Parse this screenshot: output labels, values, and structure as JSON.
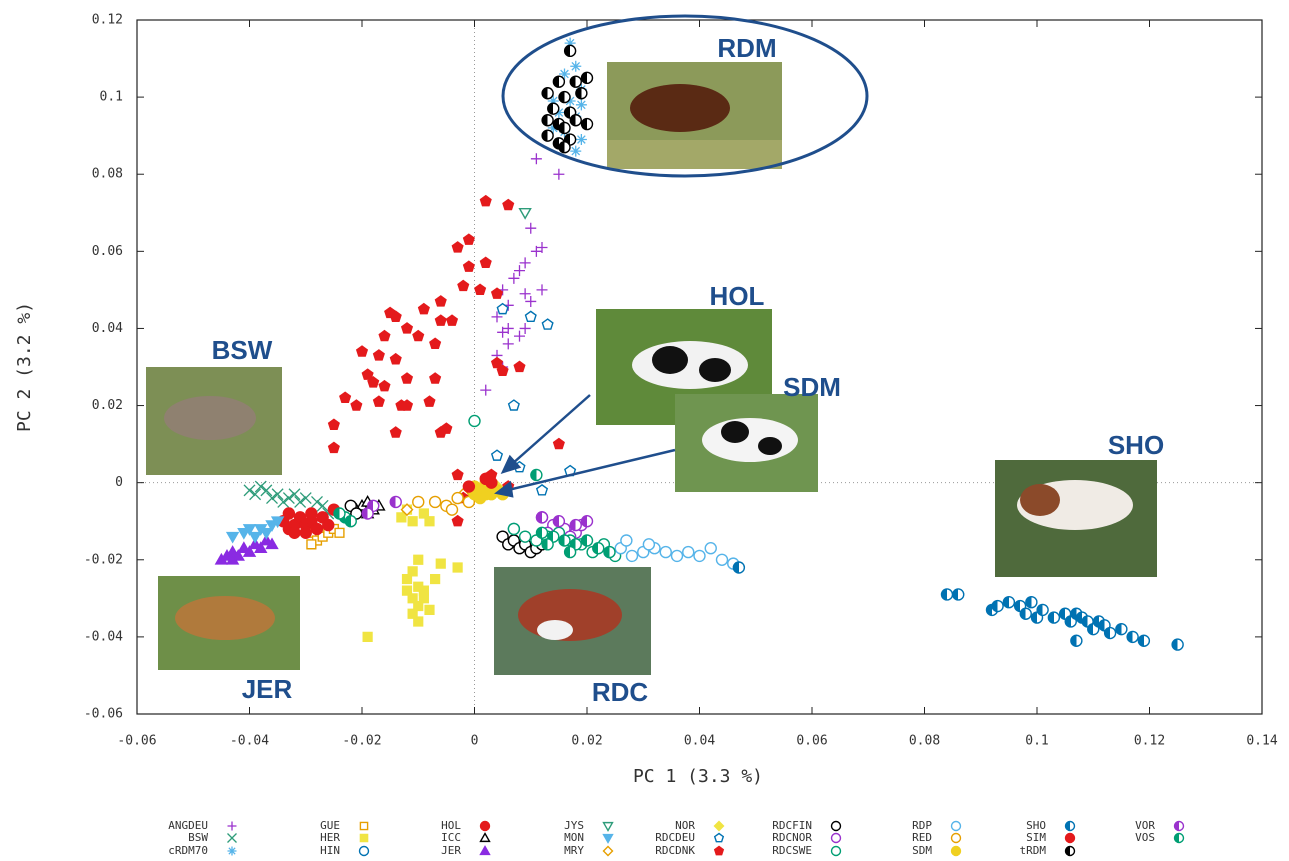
{
  "chart_data": {
    "type": "scatter",
    "x_label": "PC 1 (3.3 %)",
    "y_label": "PC 2 (3.2 %)",
    "xlim": [
      -0.06,
      0.14
    ],
    "ylim": [
      -0.06,
      0.12
    ],
    "xticks": [
      -0.06,
      -0.04,
      -0.02,
      0,
      0.02,
      0.04,
      0.06,
      0.08,
      0.1,
      0.12,
      0.14
    ],
    "yticks": [
      -0.06,
      -0.04,
      -0.02,
      0,
      0.02,
      0.04,
      0.06,
      0.08,
      0.1,
      0.12
    ],
    "zero_lines": true,
    "annotations": [
      "RDM",
      "HOL",
      "SDM",
      "BSW",
      "SHO",
      "JER",
      "RDC"
    ],
    "series": [
      {
        "name": "ANGDEU",
        "color": "#9a32cd",
        "marker": "plus",
        "filled": false,
        "x": [
          0.011,
          0.015,
          0.01,
          0.012,
          0.011,
          0.009,
          0.008,
          0.007,
          0.005,
          0.009,
          0.012,
          0.006,
          0.01,
          0.004,
          0.006,
          0.005,
          0.008,
          0.004,
          0.005,
          0.002,
          0.006,
          0.009
        ],
        "values": [
          0.084,
          0.08,
          0.066,
          0.061,
          0.06,
          0.057,
          0.055,
          0.053,
          0.05,
          0.049,
          0.05,
          0.046,
          0.047,
          0.043,
          0.04,
          0.039,
          0.038,
          0.033,
          0.03,
          0.024,
          0.036,
          0.04
        ]
      },
      {
        "name": "BSW",
        "color": "#2e9c7a",
        "marker": "cross",
        "filled": false,
        "x": [
          -0.04,
          -0.039,
          -0.037,
          -0.036,
          -0.035,
          -0.034,
          -0.033,
          -0.031,
          -0.03,
          -0.028,
          -0.027,
          -0.038,
          -0.032,
          -0.026
        ],
        "values": [
          -0.002,
          -0.003,
          -0.002,
          -0.004,
          -0.003,
          -0.005,
          -0.004,
          -0.005,
          -0.004,
          -0.005,
          -0.006,
          -0.001,
          -0.003,
          -0.008
        ]
      },
      {
        "name": "cRDM70",
        "color": "#56b4e9",
        "marker": "star",
        "filled": false,
        "x": [
          0.017,
          0.018,
          0.016,
          0.019,
          0.014,
          0.017,
          0.019,
          0.015,
          0.018,
          0.016,
          0.019,
          0.018,
          0.014
        ],
        "values": [
          0.114,
          0.108,
          0.106,
          0.102,
          0.099,
          0.099,
          0.098,
          0.096,
          0.095,
          0.091,
          0.089,
          0.086,
          0.092
        ]
      },
      {
        "name": "GUE",
        "color": "#e69f00",
        "marker": "square",
        "filled": false,
        "x": [
          -0.029,
          -0.028,
          -0.027,
          -0.026,
          -0.025,
          -0.029,
          -0.024
        ],
        "values": [
          -0.013,
          -0.015,
          -0.014,
          -0.013,
          -0.012,
          -0.016,
          -0.013
        ]
      },
      {
        "name": "HER",
        "color": "#f0e442",
        "marker": "square",
        "filled": true,
        "x": [
          -0.01,
          -0.011,
          -0.012,
          -0.01,
          -0.009,
          -0.012,
          -0.011,
          -0.01,
          -0.009,
          -0.008,
          -0.006,
          -0.007,
          -0.003,
          -0.011,
          -0.019,
          -0.01,
          -0.012,
          -0.013,
          -0.011,
          -0.009,
          -0.008
        ],
        "values": [
          -0.02,
          -0.023,
          -0.025,
          -0.027,
          -0.028,
          -0.028,
          -0.03,
          -0.032,
          -0.03,
          -0.033,
          -0.021,
          -0.025,
          -0.022,
          -0.034,
          -0.04,
          -0.036,
          -0.007,
          -0.009,
          -0.01,
          -0.008,
          -0.01
        ]
      },
      {
        "name": "HIN",
        "color": "#0072b2",
        "marker": "circle",
        "filled": false,
        "x": [
          0.007
        ],
        "values": [
          -0.012
        ]
      },
      {
        "name": "HOL",
        "color": "#e41a1c",
        "marker": "circle",
        "filled": true,
        "x": [
          -0.034,
          -0.033,
          -0.032,
          -0.031,
          -0.03,
          -0.029,
          -0.028,
          -0.032,
          -0.03,
          -0.027,
          -0.026,
          -0.033,
          -0.029,
          -0.025
        ],
        "values": [
          -0.01,
          -0.012,
          -0.011,
          -0.009,
          -0.011,
          -0.01,
          -0.012,
          -0.013,
          -0.013,
          -0.009,
          -0.011,
          -0.008,
          -0.008,
          -0.007
        ]
      },
      {
        "name": "ICC",
        "color": "#000000",
        "marker": "triangle",
        "filled": false,
        "x": [
          -0.02,
          -0.019,
          -0.018,
          -0.017,
          -0.021,
          -0.019
        ],
        "values": [
          -0.006,
          -0.005,
          -0.007,
          -0.006,
          -0.007,
          -0.008
        ]
      },
      {
        "name": "JER",
        "color": "#8a2be2",
        "marker": "triangle",
        "filled": true,
        "x": [
          -0.045,
          -0.044,
          -0.043,
          -0.042,
          -0.041,
          -0.04,
          -0.039,
          -0.038,
          -0.037,
          -0.036,
          -0.043
        ],
        "values": [
          -0.02,
          -0.019,
          -0.018,
          -0.019,
          -0.017,
          -0.018,
          -0.016,
          -0.017,
          -0.015,
          -0.016,
          -0.02
        ]
      },
      {
        "name": "JYS",
        "color": "#2e9c7a",
        "marker": "tridown",
        "filled": false,
        "x": [
          0.009
        ],
        "values": [
          0.07
        ]
      },
      {
        "name": "MON",
        "color": "#56b4e9",
        "marker": "tridown",
        "filled": true,
        "x": [
          -0.043,
          -0.041,
          -0.04,
          -0.038,
          -0.036,
          -0.035,
          -0.039,
          -0.037
        ],
        "values": [
          -0.014,
          -0.013,
          -0.012,
          -0.012,
          -0.011,
          -0.01,
          -0.014,
          -0.013
        ]
      },
      {
        "name": "MRY",
        "color": "#e69f00",
        "marker": "diamond",
        "filled": false,
        "x": [
          -0.002,
          -0.012
        ],
        "values": [
          -0.003,
          -0.007
        ]
      },
      {
        "name": "NOR",
        "color": "#f0e442",
        "marker": "diamond",
        "filled": true,
        "x": [
          0.002,
          0.004
        ],
        "values": [
          0.001,
          -0.001
        ]
      },
      {
        "name": "RDCDEU",
        "color": "#0072b2",
        "marker": "pentagon",
        "filled": false,
        "x": [
          0.005,
          0.01,
          0.013,
          0.007,
          0.004,
          0.008,
          0.017,
          0.012
        ],
        "values": [
          0.045,
          0.043,
          0.041,
          0.02,
          0.007,
          0.004,
          0.003,
          -0.002
        ]
      },
      {
        "name": "RDCDNK",
        "color": "#e41a1c",
        "marker": "pentagon",
        "filled": true,
        "x": [
          0.002,
          0.006,
          -0.001,
          -0.003,
          0.002,
          -0.001,
          0.001,
          0.004,
          -0.002,
          -0.006,
          -0.006,
          -0.009,
          -0.015,
          -0.014,
          -0.012,
          -0.016,
          -0.01,
          -0.004,
          -0.007,
          -0.02,
          -0.017,
          -0.019,
          -0.014,
          -0.012,
          -0.007,
          -0.016,
          -0.018,
          -0.021,
          -0.023,
          -0.025,
          -0.025,
          -0.017,
          -0.013,
          -0.012,
          -0.008,
          -0.014,
          -0.006,
          -0.005,
          0.004,
          0.005,
          0.008,
          -0.003,
          -0.002,
          -0.003,
          0.015,
          0.003,
          0.006
        ],
        "values": [
          0.073,
          0.072,
          0.063,
          0.061,
          0.057,
          0.056,
          0.05,
          0.049,
          0.051,
          0.047,
          0.042,
          0.045,
          0.044,
          0.043,
          0.04,
          0.038,
          0.038,
          0.042,
          0.036,
          0.034,
          0.033,
          0.028,
          0.032,
          0.027,
          0.027,
          0.025,
          0.026,
          0.02,
          0.022,
          0.015,
          0.009,
          0.021,
          0.02,
          0.02,
          0.021,
          0.013,
          0.013,
          0.014,
          0.031,
          0.029,
          0.03,
          0.002,
          -0.004,
          -0.01,
          0.01,
          0.002,
          -0.001
        ]
      },
      {
        "name": "RDCFIN",
        "color": "#000000",
        "marker": "circle",
        "filled": false,
        "x": [
          -0.022,
          -0.021,
          0.005,
          0.006,
          0.007,
          0.008,
          0.009,
          0.01,
          0.011,
          0.012
        ],
        "values": [
          -0.006,
          -0.008,
          -0.014,
          -0.016,
          -0.015,
          -0.017,
          -0.016,
          -0.018,
          -0.017,
          -0.016
        ]
      },
      {
        "name": "RDCNOR",
        "color": "#9a32cd",
        "marker": "circle",
        "filled": false,
        "x": [
          0.012,
          0.014,
          0.016,
          0.018,
          0.013,
          0.019,
          0.017
        ],
        "values": [
          -0.009,
          -0.011,
          -0.012,
          -0.013,
          -0.013,
          -0.011,
          -0.014
        ]
      },
      {
        "name": "RDCSWE",
        "color": "#009e73",
        "marker": "circle",
        "filled": false,
        "x": [
          0.0,
          0.007,
          0.009,
          0.011,
          0.013,
          0.015,
          0.017,
          0.019,
          0.021,
          0.023,
          0.025
        ],
        "values": [
          0.016,
          -0.012,
          -0.014,
          -0.015,
          -0.014,
          -0.013,
          -0.015,
          -0.016,
          -0.018,
          -0.016,
          -0.019
        ]
      },
      {
        "name": "RDP",
        "color": "#56b4e9",
        "marker": "circle",
        "filled": false,
        "x": [
          0.024,
          0.026,
          0.028,
          0.03,
          0.032,
          0.034,
          0.036,
          0.038,
          0.04,
          0.042,
          0.044,
          0.046,
          0.027,
          0.031
        ],
        "values": [
          -0.018,
          -0.017,
          -0.019,
          -0.018,
          -0.017,
          -0.018,
          -0.019,
          -0.018,
          -0.019,
          -0.017,
          -0.02,
          -0.021,
          -0.015,
          -0.016
        ]
      },
      {
        "name": "RED",
        "color": "#e69f00",
        "marker": "circle",
        "filled": false,
        "x": [
          -0.01,
          -0.007,
          -0.005,
          -0.003,
          -0.001,
          -0.004
        ],
        "values": [
          -0.005,
          -0.005,
          -0.006,
          -0.004,
          -0.005,
          -0.007
        ]
      },
      {
        "name": "SDM",
        "color": "#f0d020",
        "marker": "circle",
        "filled": true,
        "x": [
          0.0,
          0.001,
          0.002,
          0.003,
          0.004,
          0.002,
          0.001,
          0.003,
          0.005,
          0.0
        ],
        "values": [
          -0.001,
          -0.002,
          -0.003,
          -0.001,
          -0.002,
          0.0,
          -0.004,
          -0.003,
          -0.003,
          -0.003
        ]
      },
      {
        "name": "SHO",
        "color": "#0072b2",
        "marker": "half",
        "filled": true,
        "x": [
          0.084,
          0.086,
          0.092,
          0.093,
          0.095,
          0.097,
          0.098,
          0.099,
          0.1,
          0.101,
          0.103,
          0.105,
          0.106,
          0.107,
          0.108,
          0.109,
          0.11,
          0.111,
          0.112,
          0.113,
          0.115,
          0.117,
          0.119,
          0.125,
          0.047,
          0.107
        ],
        "values": [
          -0.029,
          -0.029,
          -0.033,
          -0.032,
          -0.031,
          -0.032,
          -0.034,
          -0.031,
          -0.035,
          -0.033,
          -0.035,
          -0.034,
          -0.036,
          -0.034,
          -0.035,
          -0.036,
          -0.038,
          -0.036,
          -0.037,
          -0.039,
          -0.038,
          -0.04,
          -0.041,
          -0.042,
          -0.022,
          -0.041
        ]
      },
      {
        "name": "SIM",
        "color": "#e41a1c",
        "marker": "circle",
        "filled": true,
        "x": [
          0.002,
          0.003,
          -0.001
        ],
        "values": [
          0.001,
          0.0,
          -0.001
        ]
      },
      {
        "name": "tRDM",
        "color": "#000000",
        "marker": "half",
        "filled": true,
        "x": [
          0.017,
          0.015,
          0.018,
          0.02,
          0.013,
          0.016,
          0.019,
          0.014,
          0.017,
          0.013,
          0.015,
          0.018,
          0.02,
          0.016,
          0.013,
          0.015,
          0.017,
          0.016
        ],
        "values": [
          0.112,
          0.104,
          0.104,
          0.105,
          0.101,
          0.1,
          0.101,
          0.097,
          0.096,
          0.094,
          0.093,
          0.094,
          0.093,
          0.092,
          0.09,
          0.088,
          0.089,
          0.087
        ]
      },
      {
        "name": "VOR",
        "color": "#9a32cd",
        "marker": "half",
        "filled": true,
        "x": [
          -0.018,
          -0.019,
          -0.014,
          0.012,
          0.015,
          0.018,
          0.02
        ],
        "values": [
          -0.006,
          -0.008,
          -0.005,
          -0.009,
          -0.01,
          -0.011,
          -0.01
        ]
      },
      {
        "name": "VOS",
        "color": "#009e73",
        "marker": "half",
        "filled": true,
        "x": [
          -0.023,
          -0.024,
          -0.022,
          0.011,
          0.012,
          0.014,
          0.016,
          0.018,
          0.02,
          0.022,
          0.024,
          0.013,
          0.017
        ],
        "values": [
          -0.009,
          -0.008,
          -0.01,
          0.002,
          -0.013,
          -0.014,
          -0.015,
          -0.016,
          -0.015,
          -0.017,
          -0.018,
          -0.016,
          -0.018
        ]
      }
    ]
  }
}
